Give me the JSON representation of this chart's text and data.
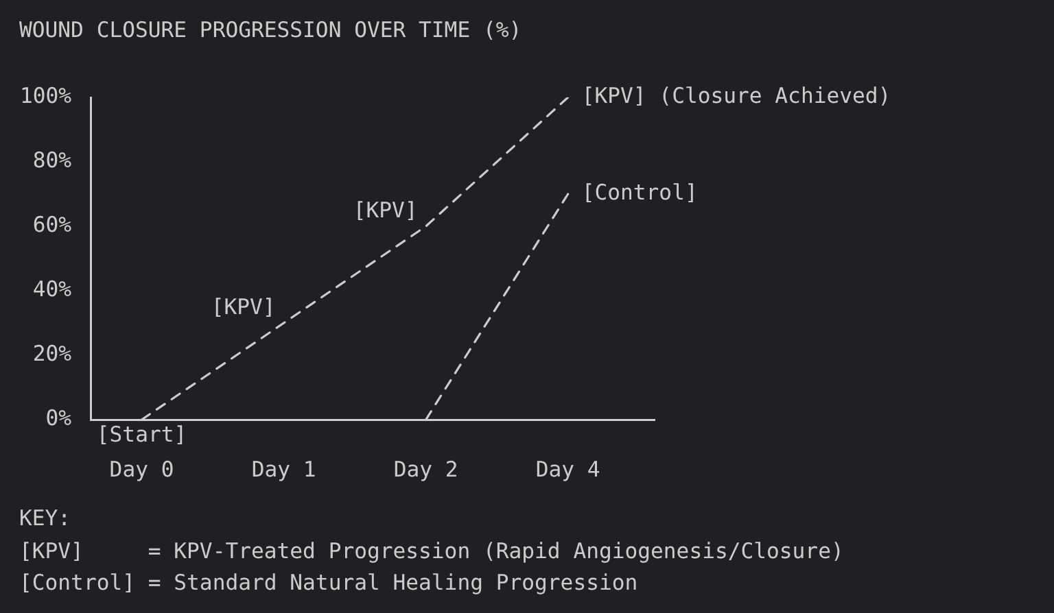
{
  "chart_data": {
    "type": "line",
    "title": "WOUND CLOSURE PROGRESSION OVER TIME (%)",
    "categories": [
      "Day 0",
      "Day 1",
      "Day 2",
      "Day 4"
    ],
    "series": [
      {
        "color": "#cccccc",
        "values": [
          0,
          30,
          60,
          100
        ]
      },
      {
        "color": "#cccccc",
        "values": [
          null,
          null,
          0,
          70
        ]
      }
    ],
    "ylim": [
      0,
      100
    ],
    "yticks": [
      {
        "value": 0,
        "label": "0%"
      },
      {
        "value": 20,
        "label": "20%"
      },
      {
        "value": 40,
        "label": "40%"
      },
      {
        "value": 60,
        "label": "60%"
      },
      {
        "value": 80,
        "label": "80%"
      },
      {
        "value": 100,
        "label": "100%"
      }
    ],
    "marker": "none",
    "line_style": "dashed",
    "annotations": [
      {
        "text": "[Start]",
        "x": "Day 0",
        "y": 0
      },
      {
        "text": "[KPV]",
        "x": "Day 1",
        "y": 30
      },
      {
        "text": "[KPV]",
        "x": "Day 2",
        "y": 60
      },
      {
        "text": "[KPV] (Closure Achieved)",
        "x": "Day 4",
        "y": 100
      },
      {
        "text": "[Control]",
        "x": "Day 4",
        "y": 70
      },
      "KEY:",
      "[KPV]     = KPV-Treated Progression (Rapid Angiogenesis/Closure)",
      "[Control] = Standard Natural Healing Progression"
    ]
  }
}
